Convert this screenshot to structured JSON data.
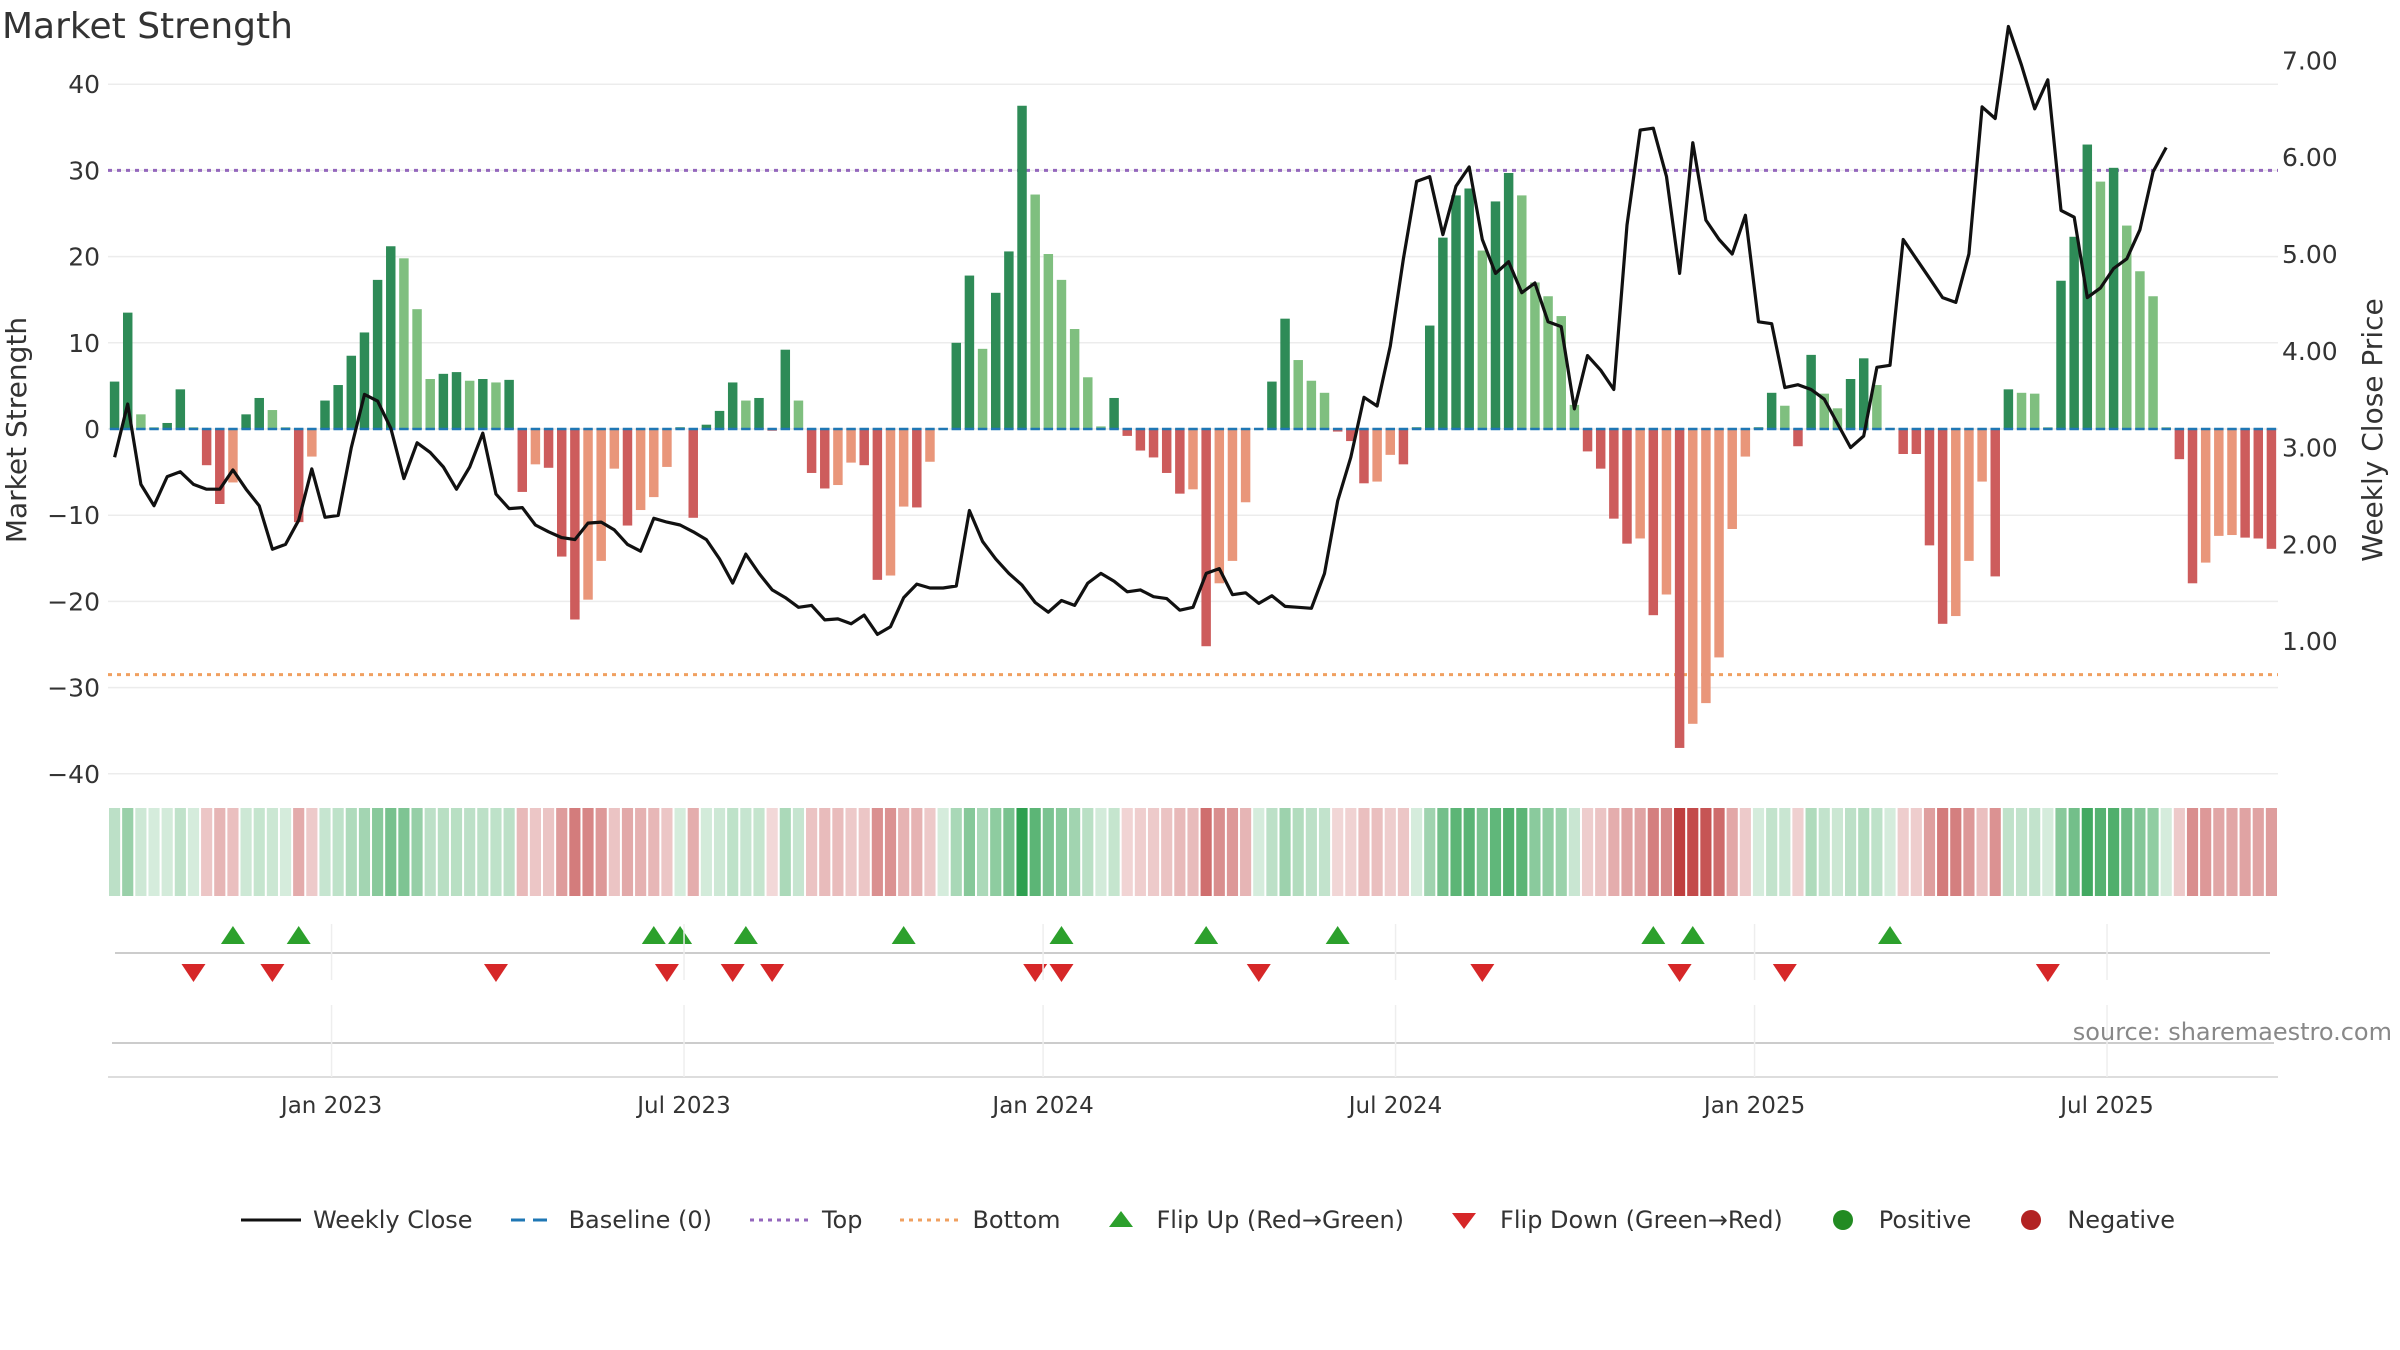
{
  "chart_data": {
    "type": "bar+line",
    "title": "Market Strength",
    "ylabel_left": "Market Strength",
    "ylabel_right": "Weekly Close Price",
    "left_ticks": [
      40,
      30,
      20,
      10,
      0,
      -10,
      -20,
      -30,
      -40
    ],
    "left_tick_labels": [
      "40",
      "30",
      "20",
      "10",
      "0",
      "−10",
      "−20",
      "−30",
      "−40"
    ],
    "left_ylim": [
      -40,
      40
    ],
    "right_ticks": [
      7.0,
      6.0,
      5.0,
      4.0,
      3.0,
      2.0,
      1.0
    ],
    "right_tick_labels": [
      "7.00",
      "6.00",
      "5.00",
      "4.00",
      "3.00",
      "2.00",
      "1.00"
    ],
    "top_level": 30,
    "bottom_level": -28.5,
    "date_labels": [
      "Jan 2023",
      "Jul 2023",
      "Jan 2024",
      "Jul 2024",
      "Jan 2025",
      "Jul 2025"
    ],
    "strength": [
      5.5,
      13.5,
      1.7,
      0.2,
      0.7,
      4.6,
      0.2,
      -4.2,
      -8.7,
      -6.2,
      1.7,
      3.6,
      2.2,
      0.2,
      -10.8,
      -3.2,
      3.3,
      5.1,
      8.5,
      11.2,
      17.3,
      21.2,
      19.8,
      13.9,
      5.8,
      6.4,
      6.6,
      5.6,
      5.8,
      5.4,
      5.7,
      -7.3,
      -4.1,
      -4.5,
      -14.8,
      -22.1,
      -19.8,
      -15.3,
      -4.6,
      -11.2,
      -9.4,
      -7.9,
      -4.4,
      0.2,
      -10.3,
      0.5,
      2.1,
      5.4,
      3.3,
      3.6,
      -0.2,
      9.2,
      3.3,
      -5.1,
      -6.9,
      -6.5,
      -3.9,
      -4.2,
      -17.5,
      -17.0,
      -9.0,
      -9.1,
      -3.8,
      0.1,
      10.0,
      17.8,
      9.3,
      15.8,
      20.6,
      37.5,
      27.2,
      20.3,
      17.3,
      11.6,
      6.0,
      0.3,
      3.6,
      -0.8,
      -2.5,
      -3.3,
      -5.1,
      -7.5,
      -7.0,
      -25.2,
      -17.9,
      -15.3,
      -8.5,
      0.1,
      5.5,
      12.8,
      8.0,
      5.6,
      4.2,
      -0.3,
      -1.4,
      -6.3,
      -6.1,
      -3.0,
      -4.1,
      0.2,
      12.0,
      22.2,
      27.1,
      27.9,
      20.7,
      26.4,
      29.7,
      27.1,
      17.0,
      15.4,
      13.1,
      2.8,
      -2.6,
      -4.6,
      -10.4,
      -13.3,
      -12.7,
      -21.6,
      -19.2,
      -37.0,
      -34.2,
      -31.8,
      -26.5,
      -11.6,
      -3.2,
      0.2,
      4.2,
      2.7,
      -2.0,
      8.6,
      4.1,
      2.4,
      5.8,
      8.2,
      5.1,
      0.1,
      -2.9,
      -2.9,
      -13.5,
      -22.6,
      -21.7,
      -15.3,
      -6.1,
      -17.1,
      4.6,
      4.2,
      4.1,
      0.2,
      17.2,
      22.3,
      33.0,
      28.7,
      30.3,
      23.6,
      18.3,
      15.4,
      0.2,
      -3.5,
      -17.9,
      -15.5,
      -12.4,
      -12.3,
      -12.6,
      -12.7,
      -13.9
    ],
    "weekly_close": [
      2.9,
      3.45,
      2.62,
      2.4,
      2.7,
      2.75,
      2.62,
      2.57,
      2.57,
      2.77,
      2.57,
      2.4,
      1.95,
      2.0,
      2.25,
      2.78,
      2.28,
      2.3,
      3.0,
      3.55,
      3.48,
      3.2,
      2.68,
      3.05,
      2.95,
      2.8,
      2.57,
      2.8,
      3.15,
      2.52,
      2.37,
      2.38,
      2.2,
      2.13,
      2.07,
      2.05,
      2.22,
      2.23,
      2.15,
      2.0,
      1.93,
      2.27,
      2.23,
      2.2,
      2.13,
      2.05,
      1.85,
      1.6,
      1.9,
      1.7,
      1.53,
      1.45,
      1.35,
      1.37,
      1.22,
      1.23,
      1.18,
      1.27,
      1.07,
      1.15,
      1.45,
      1.59,
      1.55,
      1.55,
      1.57,
      2.35,
      2.03,
      1.85,
      1.7,
      1.58,
      1.4,
      1.3,
      1.42,
      1.37,
      1.6,
      1.7,
      1.62,
      1.51,
      1.53,
      1.46,
      1.44,
      1.32,
      1.35,
      1.7,
      1.75,
      1.48,
      1.5,
      1.39,
      1.47,
      1.36,
      1.35,
      1.34,
      1.7,
      2.45,
      2.9,
      3.52,
      3.43,
      4.05,
      4.95,
      5.75,
      5.8,
      5.2,
      5.7,
      5.9,
      5.15,
      4.8,
      4.92,
      4.6,
      4.7,
      4.3,
      4.25,
      3.4,
      3.95,
      3.8,
      3.6,
      5.3,
      6.28,
      6.3,
      5.8,
      4.8,
      6.15,
      5.35,
      5.15,
      5.0,
      5.4,
      4.3,
      4.28,
      3.62,
      3.65,
      3.6,
      3.5,
      3.25,
      3.0,
      3.12,
      3.83,
      3.85,
      5.15,
      4.95,
      4.75,
      4.55,
      4.5,
      5.0,
      6.52,
      6.4,
      7.35,
      6.95,
      6.5,
      6.8,
      5.45,
      5.38,
      4.55,
      4.65,
      4.85,
      4.95,
      5.25,
      5.85,
      6.1
    ],
    "flip_up": [
      9,
      14,
      41,
      43,
      48,
      60,
      72,
      83,
      93,
      117,
      120,
      135
    ],
    "flip_down": [
      6,
      12,
      29,
      42,
      47,
      50,
      70,
      72,
      87,
      104,
      119,
      127,
      147
    ],
    "legend": [
      "Weekly Close",
      "Baseline (0)",
      "Top",
      "Bottom",
      "Flip Up (Red→Green)",
      "Flip Down (Green→Red)",
      "Positive",
      "Negative"
    ],
    "source": "source: sharemaestro.com"
  },
  "colors": {
    "pos_strong": "#2e8b57",
    "pos_light": "#7fbf7f",
    "neg_strong": "#cd5c5c",
    "neg_light": "#e9967a",
    "top_line": "#9467bd",
    "bottom_line": "#f0a060",
    "baseline": "#1f77b4",
    "flip_up": "#2ca02c",
    "flip_down": "#d62728",
    "positive_dot": "#228b22",
    "negative_dot": "#b22222"
  }
}
